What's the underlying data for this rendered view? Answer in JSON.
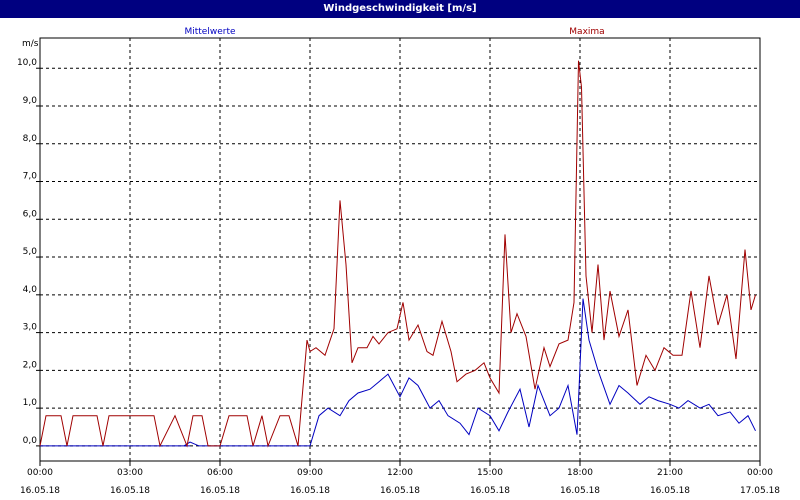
{
  "window": {
    "title": "Windgeschwindigkeit [m/s]"
  },
  "chart_data": {
    "type": "line",
    "title": "Windgeschwindigkeit [m/s]",
    "ylabel": "m/s",
    "xlabel": "",
    "ylim": [
      -0.4,
      10.8
    ],
    "xlim": [
      "16.05.18 00:00",
      "17.05.18 00:00"
    ],
    "grid": true,
    "y_ticks": [
      "0,0",
      "1,0",
      "2,0",
      "3,0",
      "4,0",
      "5,0",
      "6,0",
      "7,0",
      "8,0",
      "9,0",
      "10,0"
    ],
    "x_ticks": [
      {
        "time": "00:00",
        "date": "16.05.18"
      },
      {
        "time": "03:00",
        "date": "16.05.18"
      },
      {
        "time": "06:00",
        "date": "16.05.18"
      },
      {
        "time": "09:00",
        "date": "16.05.18"
      },
      {
        "time": "12:00",
        "date": "16.05.18"
      },
      {
        "time": "15:00",
        "date": "16.05.18"
      },
      {
        "time": "18:00",
        "date": "16.05.18"
      },
      {
        "time": "21:00",
        "date": "16.05.18"
      },
      {
        "time": "00:00",
        "date": "17.05.18"
      }
    ],
    "legend_placement": "top",
    "series": [
      {
        "name": "Mittelwerte",
        "color": "#0000c0",
        "x_hours": [
          0,
          1,
          2,
          3,
          4,
          5,
          4.8,
          5.0,
          5.3,
          9.0,
          9.3,
          9.6,
          10.0,
          10.3,
          10.6,
          11.0,
          11.3,
          11.6,
          12.0,
          12.3,
          12.6,
          13.0,
          13.3,
          13.6,
          14.0,
          14.3,
          14.6,
          15.0,
          15.3,
          15.6,
          16.0,
          16.3,
          16.6,
          17.0,
          17.3,
          17.6,
          17.9,
          18.1,
          18.3,
          18.6,
          19.0,
          19.3,
          19.6,
          20.0,
          20.3,
          20.6,
          21.0,
          21.3,
          21.6,
          22.0,
          22.3,
          22.6,
          23.0,
          23.3,
          23.6,
          23.85
        ],
        "values": [
          0,
          0,
          0,
          0,
          0,
          0,
          0,
          0.1,
          0,
          0,
          0.8,
          1.0,
          0.8,
          1.2,
          1.4,
          1.5,
          1.7,
          1.9,
          1.3,
          1.8,
          1.6,
          1.0,
          1.2,
          0.8,
          0.6,
          0.3,
          1.0,
          0.8,
          0.4,
          0.9,
          1.5,
          0.5,
          1.6,
          0.8,
          1.0,
          1.6,
          0.3,
          3.9,
          2.8,
          2.0,
          1.1,
          1.6,
          1.4,
          1.1,
          1.3,
          1.2,
          1.1,
          1.0,
          1.2,
          1.0,
          1.1,
          0.8,
          0.9,
          0.6,
          0.8,
          0.4
        ]
      },
      {
        "name": "Maxima",
        "color": "#a00000",
        "x_hours": [
          0,
          0.2,
          0.7,
          0.9,
          1.1,
          1.9,
          2.1,
          2.3,
          3.8,
          4.0,
          4.5,
          4.9,
          5.1,
          5.4,
          5.6,
          6.0,
          6.3,
          6.9,
          7.1,
          7.4,
          7.6,
          8.0,
          8.3,
          8.6,
          8.9,
          9.0,
          9.2,
          9.5,
          9.8,
          10.0,
          10.2,
          10.4,
          10.6,
          10.9,
          11.1,
          11.3,
          11.6,
          11.9,
          12.1,
          12.3,
          12.6,
          12.9,
          13.1,
          13.4,
          13.7,
          13.9,
          14.2,
          14.5,
          14.8,
          15.0,
          15.3,
          15.5,
          15.7,
          15.9,
          16.2,
          16.5,
          16.8,
          17.0,
          17.3,
          17.6,
          17.8,
          17.95,
          18.05,
          18.2,
          18.4,
          18.6,
          18.8,
          19.0,
          19.3,
          19.6,
          19.9,
          20.2,
          20.5,
          20.8,
          21.1,
          21.4,
          21.7,
          22.0,
          22.3,
          22.6,
          22.9,
          23.2,
          23.5,
          23.7,
          23.85
        ],
        "values": [
          0,
          0.8,
          0.8,
          0,
          0.8,
          0.8,
          0,
          0.8,
          0.8,
          0,
          0.8,
          0,
          0.8,
          0.8,
          0,
          0,
          0.8,
          0.8,
          0,
          0.8,
          0,
          0.8,
          0.8,
          0,
          2.8,
          2.5,
          2.6,
          2.4,
          3.1,
          6.5,
          4.8,
          2.2,
          2.6,
          2.6,
          2.9,
          2.7,
          3.0,
          3.1,
          3.8,
          2.8,
          3.2,
          2.5,
          2.4,
          3.3,
          2.5,
          1.7,
          1.9,
          2.0,
          2.2,
          1.8,
          1.4,
          5.6,
          3.0,
          3.5,
          2.9,
          1.5,
          2.6,
          2.1,
          2.7,
          2.8,
          3.8,
          10.2,
          9.5,
          4.5,
          3.0,
          4.8,
          2.8,
          4.1,
          2.9,
          3.6,
          1.6,
          2.4,
          2.0,
          2.6,
          2.4,
          2.4,
          4.1,
          2.6,
          4.5,
          3.2,
          4.0,
          2.3,
          5.2,
          3.6,
          4.0
        ]
      }
    ]
  }
}
